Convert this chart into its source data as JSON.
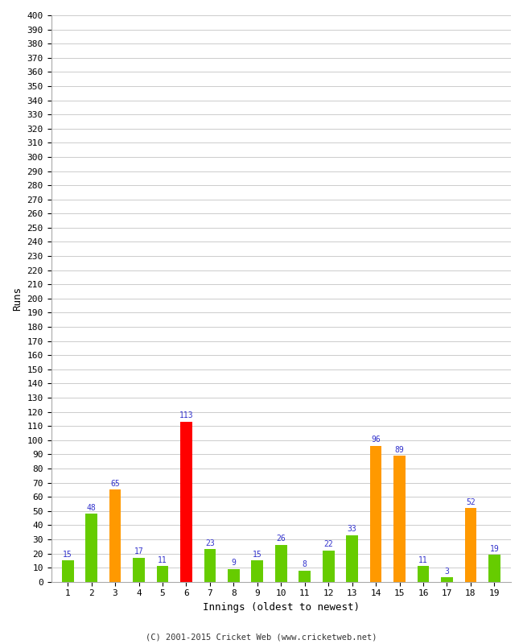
{
  "xlabel": "Innings (oldest to newest)",
  "ylabel": "Runs",
  "innings": [
    1,
    2,
    3,
    4,
    5,
    6,
    7,
    8,
    9,
    10,
    11,
    12,
    13,
    14,
    15,
    16,
    17,
    18,
    19
  ],
  "values": [
    15,
    48,
    65,
    17,
    11,
    113,
    23,
    9,
    15,
    26,
    8,
    22,
    33,
    96,
    89,
    11,
    3,
    52,
    19
  ],
  "colors": [
    "#66cc00",
    "#66cc00",
    "#ff9900",
    "#66cc00",
    "#66cc00",
    "#ff0000",
    "#66cc00",
    "#66cc00",
    "#66cc00",
    "#66cc00",
    "#66cc00",
    "#66cc00",
    "#66cc00",
    "#ff9900",
    "#ff9900",
    "#66cc00",
    "#66cc00",
    "#ff9900",
    "#66cc00"
  ],
  "label_color": "#3333cc",
  "background_color": "#ffffff",
  "grid_color": "#cccccc",
  "ylim": [
    0,
    400
  ],
  "ytick_step": 10,
  "footer": "(C) 2001-2015 Cricket Web (www.cricketweb.net)",
  "bar_width": 0.5
}
